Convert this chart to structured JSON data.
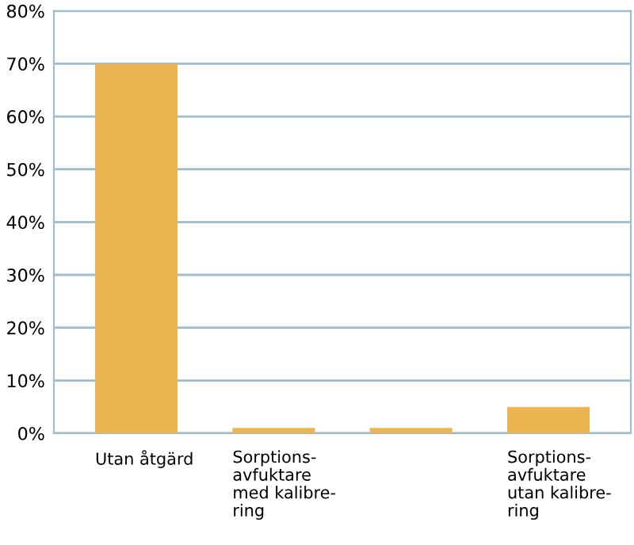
{
  "chart_data": {
    "type": "bar",
    "categories": [
      "Utan åtgärd",
      "Sorptions-\navfuktare\nmed kalibre-\nring",
      null,
      "Sorptions-\navfuktare\nutan kalibre-\nring"
    ],
    "values": [
      70,
      1,
      1,
      5
    ],
    "color": "#ebb551",
    "ylim": [
      0,
      80
    ],
    "yticks": [
      {
        "value": 0,
        "label": "0%"
      },
      {
        "value": 10,
        "label": "10%"
      },
      {
        "value": 20,
        "label": "20%"
      },
      {
        "value": 30,
        "label": "30%"
      },
      {
        "value": 40,
        "label": "40%"
      },
      {
        "value": 50,
        "label": "50%"
      },
      {
        "value": 60,
        "label": "60%"
      },
      {
        "value": 70,
        "label": "70%"
      },
      {
        "value": 80,
        "label": "80%"
      }
    ],
    "grid": "y",
    "legend": false
  }
}
